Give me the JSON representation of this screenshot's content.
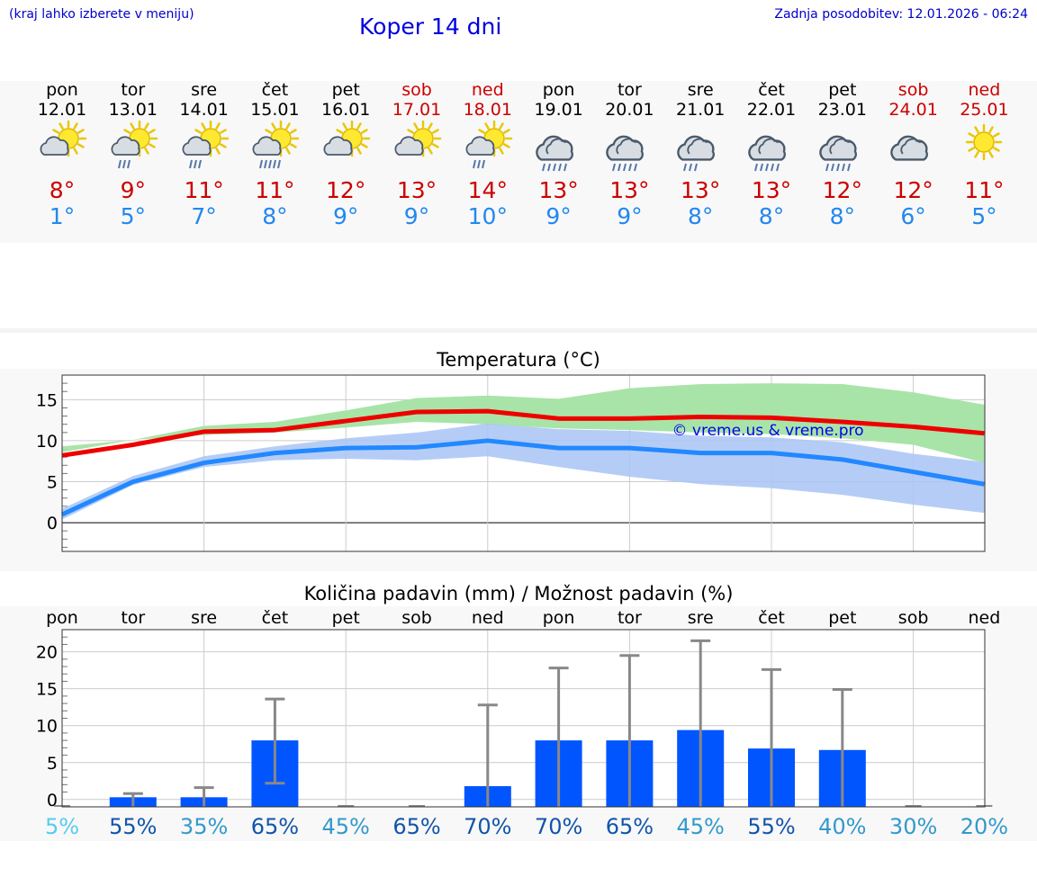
{
  "header": {
    "menu_note": "(kraj lahko izberete v meniju)",
    "title": "Koper 14 dni",
    "last_update": "Zadnja posodobitev: 12.01.2026 - 06:24"
  },
  "days": [
    {
      "name": "pon",
      "date": "12.01",
      "weekend": false,
      "icon": "partly-cloudy-icon",
      "max": "8°",
      "min": "1°"
    },
    {
      "name": "tor",
      "date": "13.01",
      "weekend": false,
      "icon": "partly-cloudy-light-rain-icon",
      "max": "9°",
      "min": "5°"
    },
    {
      "name": "sre",
      "date": "14.01",
      "weekend": false,
      "icon": "partly-cloudy-light-rain-icon",
      "max": "11°",
      "min": "7°"
    },
    {
      "name": "čet",
      "date": "15.01",
      "weekend": false,
      "icon": "partly-cloudy-rain-icon",
      "max": "11°",
      "min": "8°"
    },
    {
      "name": "pet",
      "date": "16.01",
      "weekend": false,
      "icon": "partly-cloudy-icon",
      "max": "12°",
      "min": "9°"
    },
    {
      "name": "sob",
      "date": "17.01",
      "weekend": true,
      "icon": "partly-cloudy-icon",
      "max": "13°",
      "min": "9°"
    },
    {
      "name": "ned",
      "date": "18.01",
      "weekend": true,
      "icon": "partly-cloudy-light-rain-icon",
      "max": "14°",
      "min": "10°"
    },
    {
      "name": "pon",
      "date": "19.01",
      "weekend": false,
      "icon": "cloudy-rain-icon",
      "max": "13°",
      "min": "9°"
    },
    {
      "name": "tor",
      "date": "20.01",
      "weekend": false,
      "icon": "cloudy-rain-icon",
      "max": "13°",
      "min": "9°"
    },
    {
      "name": "sre",
      "date": "21.01",
      "weekend": false,
      "icon": "cloudy-light-rain-icon",
      "max": "13°",
      "min": "8°"
    },
    {
      "name": "čet",
      "date": "22.01",
      "weekend": false,
      "icon": "cloudy-rain-icon",
      "max": "13°",
      "min": "8°"
    },
    {
      "name": "pet",
      "date": "23.01",
      "weekend": false,
      "icon": "cloudy-rain-icon",
      "max": "12°",
      "min": "8°"
    },
    {
      "name": "sob",
      "date": "24.01",
      "weekend": true,
      "icon": "cloudy-icon",
      "max": "12°",
      "min": "6°"
    },
    {
      "name": "ned",
      "date": "25.01",
      "weekend": true,
      "icon": "sunny-icon",
      "max": "11°",
      "min": "5°"
    }
  ],
  "colors": {
    "max_line": "#ee0000",
    "min_line": "#2288ff",
    "max_band": "#a8e4a8",
    "min_band": "#a8c4f4",
    "overlap_band": "#78bca8",
    "bar": "#0055ff",
    "whisker": "#888888",
    "weekend": "#cc0000"
  },
  "chart_data": [
    {
      "type": "line",
      "title": "Temperatura (°C)",
      "watermark": "© vreme.us & vreme.pro",
      "ylim": [
        -3.5,
        18
      ],
      "yticks": [
        0,
        5,
        10,
        15
      ],
      "x": [
        0,
        1,
        2,
        3,
        4,
        5,
        6,
        7,
        8,
        9,
        10,
        11,
        12,
        13
      ],
      "series": [
        {
          "name": "max",
          "values": [
            8.2,
            9.5,
            11.1,
            11.3,
            12.4,
            13.5,
            13.6,
            12.7,
            12.7,
            12.9,
            12.8,
            12.3,
            11.7,
            10.9
          ],
          "band_low": [
            8.6,
            10.1,
            10.7,
            11.0,
            11.6,
            12.3,
            12.0,
            11.5,
            11.3,
            11.0,
            10.8,
            10.3,
            9.5,
            7.3
          ],
          "band_high": [
            9.3,
            10.1,
            11.8,
            12.3,
            13.7,
            15.2,
            15.5,
            15.1,
            16.4,
            16.9,
            17.0,
            16.9,
            15.9,
            14.4
          ]
        },
        {
          "name": "min",
          "values": [
            1.0,
            5.0,
            7.3,
            8.5,
            9.1,
            9.2,
            10.0,
            9.1,
            9.1,
            8.5,
            8.5,
            7.7,
            6.2,
            4.7
          ],
          "band_low": [
            0.4,
            4.6,
            6.8,
            7.6,
            7.8,
            7.6,
            8.1,
            6.8,
            5.6,
            4.7,
            4.2,
            3.4,
            2.2,
            1.2
          ],
          "band_high": [
            1.7,
            5.7,
            8.1,
            9.3,
            10.3,
            11.0,
            12.1,
            11.4,
            11.2,
            10.6,
            10.4,
            9.8,
            8.4,
            7.4
          ]
        }
      ]
    },
    {
      "type": "bar",
      "title": "Količina padavin (mm) / Možnost padavin (%)",
      "categories": [
        "pon",
        "tor",
        "sre",
        "čet",
        "pet",
        "sob",
        "ned",
        "pon",
        "tor",
        "sre",
        "čet",
        "pet",
        "sob",
        "ned"
      ],
      "ylim": [
        -1,
        23
      ],
      "yticks": [
        0,
        5,
        10,
        15,
        20
      ],
      "values": [
        0,
        0.3,
        0.3,
        8.0,
        0,
        0,
        1.8,
        8.0,
        8.0,
        9.4,
        6.9,
        6.7,
        0,
        0
      ],
      "error_low": [
        0,
        0,
        0,
        2.2,
        0,
        0,
        0,
        0,
        0,
        0,
        0,
        0,
        0,
        0
      ],
      "error_high": [
        0,
        0.8,
        1.6,
        13.6,
        0,
        0,
        12.8,
        17.8,
        19.5,
        21.5,
        17.6,
        14.9,
        0,
        0
      ],
      "chance_labels": [
        "5%",
        "55%",
        "35%",
        "65%",
        "45%",
        "65%",
        "70%",
        "70%",
        "65%",
        "45%",
        "55%",
        "40%",
        "30%",
        "20%"
      ],
      "chance_colors": [
        "#55ccee",
        "#1155aa",
        "#3399cc",
        "#1155aa",
        "#3399cc",
        "#1155aa",
        "#1155aa",
        "#1155aa",
        "#1155aa",
        "#3399cc",
        "#1155aa",
        "#3399cc",
        "#3399cc",
        "#3399cc"
      ]
    }
  ]
}
